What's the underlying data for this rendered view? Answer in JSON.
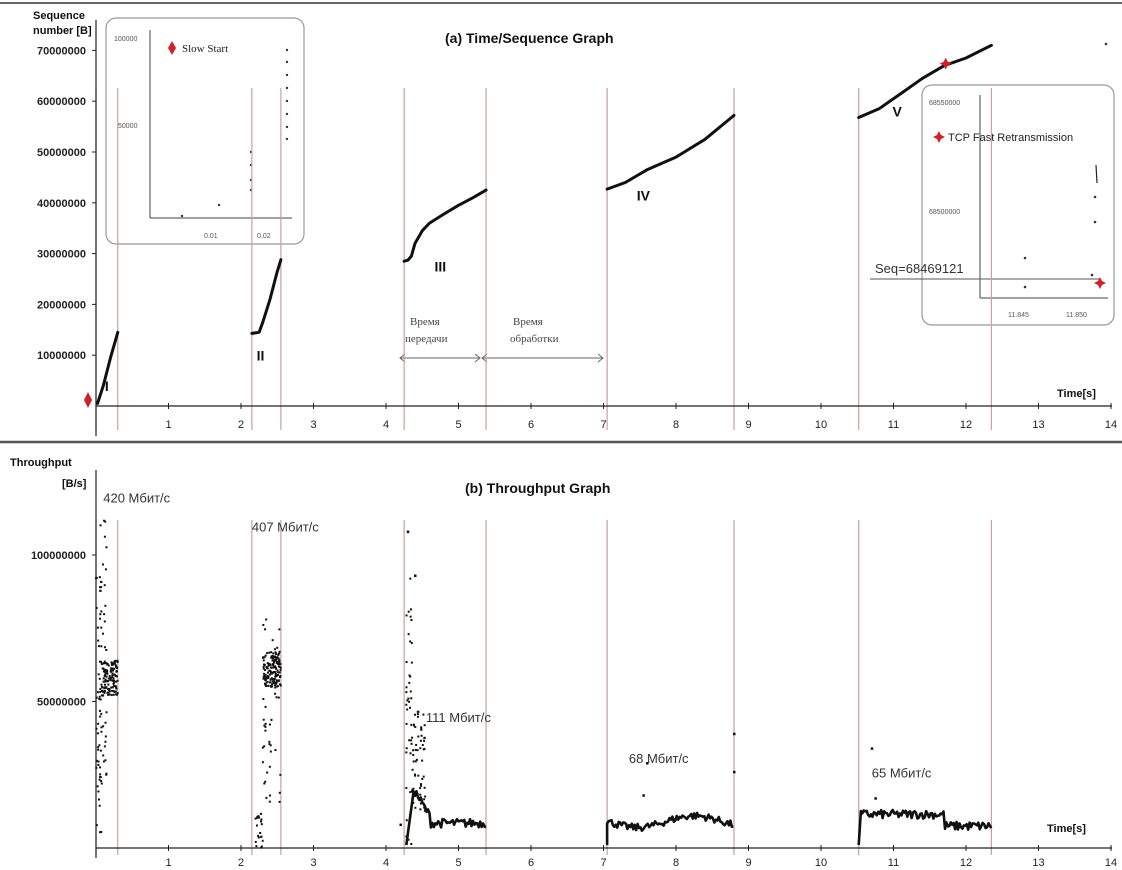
{
  "chart_data": [
    {
      "type": "line",
      "title": "(a)  Time/Sequence Graph",
      "ylabel_line1": "Sequence",
      "ylabel_line2": "number [B]",
      "xlabel": "Time[s]",
      "xlim": [
        0,
        14
      ],
      "ylim": [
        0,
        72000000
      ],
      "x_ticks": [
        "1",
        "2",
        "3",
        "4",
        "5",
        "6",
        "7",
        "8",
        "9",
        "10",
        "11",
        "12",
        "13",
        "14"
      ],
      "y_ticks": [
        {
          "value": 10000000,
          "label": "10000000"
        },
        {
          "value": 20000000,
          "label": "20000000"
        },
        {
          "value": 30000000,
          "label": "30000000"
        },
        {
          "value": 40000000,
          "label": "40000000"
        },
        {
          "value": 50000000,
          "label": "50000000"
        },
        {
          "value": 60000000,
          "label": "60000000"
        },
        {
          "value": 70000000,
          "label": "70000000"
        }
      ],
      "segments": [
        {
          "label": "I",
          "start": 0.0,
          "end": 0.3,
          "points": [
            [
              0.02,
              500000
            ],
            [
              0.1,
              4000000
            ],
            [
              0.2,
              9500000
            ],
            [
              0.3,
              14500000
            ]
          ]
        },
        {
          "label": "II",
          "start": 2.15,
          "end": 2.55,
          "points": [
            [
              2.15,
              14300000
            ],
            [
              2.25,
              14500000
            ],
            [
              2.3,
              16500000
            ],
            [
              2.4,
              21000000
            ],
            [
              2.5,
              26500000
            ],
            [
              2.55,
              28800000
            ]
          ]
        },
        {
          "label": "III",
          "start": 4.25,
          "end": 5.38,
          "points": [
            [
              4.25,
              28500000
            ],
            [
              4.3,
              28700000
            ],
            [
              4.35,
              29500000
            ],
            [
              4.4,
              32000000
            ],
            [
              4.5,
              34500000
            ],
            [
              4.6,
              36000000
            ],
            [
              4.8,
              37800000
            ],
            [
              5.0,
              39500000
            ],
            [
              5.2,
              41000000
            ],
            [
              5.38,
              42500000
            ]
          ]
        },
        {
          "label": "IV",
          "start": 7.05,
          "end": 8.8,
          "points": [
            [
              7.05,
              42700000
            ],
            [
              7.3,
              44000000
            ],
            [
              7.6,
              46500000
            ],
            [
              8.0,
              49000000
            ],
            [
              8.4,
              52500000
            ],
            [
              8.8,
              57200000
            ]
          ]
        },
        {
          "label": "V",
          "start": 10.52,
          "end": 12.35,
          "points": [
            [
              10.52,
              56800000
            ],
            [
              10.8,
              58500000
            ],
            [
              11.1,
              61500000
            ],
            [
              11.4,
              64500000
            ],
            [
              11.7,
              67000000
            ],
            [
              12.0,
              68500000
            ],
            [
              12.35,
              71000000
            ]
          ]
        }
      ],
      "period_labels": [
        {
          "text_line1": "Время",
          "text_line2": "передачи"
        },
        {
          "text_line1": "Время",
          "text_line2": "обработки"
        }
      ],
      "inset_left": {
        "legend": "Slow Start",
        "y_ticks": [
          "100000",
          "50000"
        ],
        "x_ticks": [
          "0.01",
          "0.02"
        ]
      },
      "inset_right": {
        "legend": "TCP Fast Retransmission",
        "y_ticks": [
          "68550000",
          "68500000"
        ],
        "x_ticks": [
          "11.845",
          "11.850"
        ],
        "annotation": "Seq=68469121"
      }
    },
    {
      "type": "scatter",
      "title": "(b)  Throughput Graph",
      "ylabel_line1": "Throughput",
      "ylabel_line2": "[B/s]",
      "xlabel": "Time[s]",
      "xlim": [
        0,
        14
      ],
      "ylim": [
        0,
        125000000
      ],
      "x_ticks": [
        "1",
        "2",
        "3",
        "4",
        "5",
        "6",
        "7",
        "8",
        "9",
        "10",
        "11",
        "12",
        "13",
        "14"
      ],
      "y_ticks": [
        {
          "value": 50000000,
          "label": "50000000"
        },
        {
          "value": 100000000,
          "label": "100000000"
        }
      ],
      "annotations": [
        {
          "text": "420 Мбит/с",
          "x": 0.1,
          "y": 118000000
        },
        {
          "text": "407 Мбит/с",
          "x": 2.15,
          "y": 108000000
        },
        {
          "text": "111 Мбит/с",
          "x": 4.55,
          "y": 43000000
        },
        {
          "text": "68 Мбит/с",
          "x": 7.35,
          "y": 29000000
        },
        {
          "text": "65 Мбит/с",
          "x": 10.7,
          "y": 24000000
        }
      ]
    }
  ],
  "colors": {
    "boundary": "#c8a0a0",
    "marker": "#d0202a",
    "data": "#111111",
    "axis": "#222222",
    "divider": "#333333"
  }
}
